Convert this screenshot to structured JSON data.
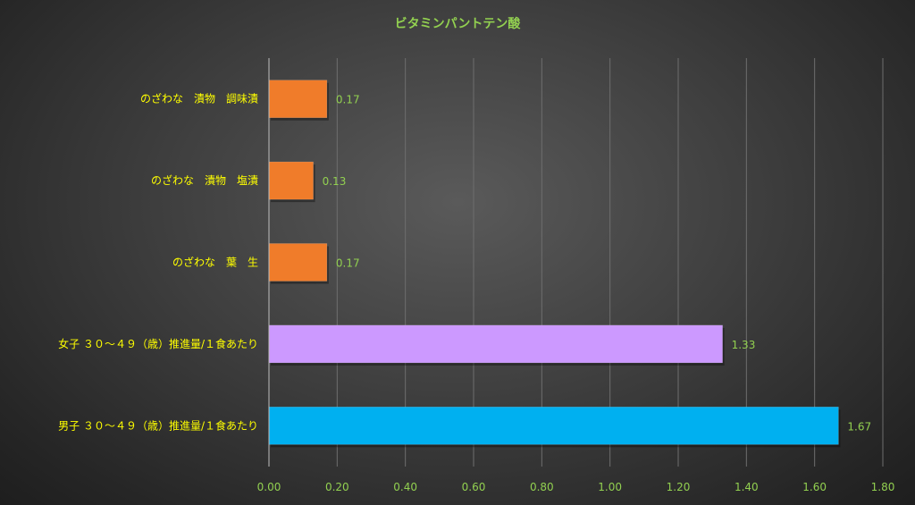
{
  "chart_data": {
    "type": "bar",
    "orientation": "horizontal",
    "title": "ビタミンパントテン酸",
    "categories": [
      "のざわな　漬物　調味漬",
      "のざわな　漬物　塩漬",
      "のざわな　葉　生",
      "女子 ３０～４９（歳）推進量/１食あたり",
      "男子 ３０～４９（歳）推進量/１食あたり"
    ],
    "values": [
      0.17,
      0.13,
      0.17,
      1.33,
      1.67
    ],
    "data_labels": [
      "0.17",
      "0.13",
      "0.17",
      "1.33",
      "1.67"
    ],
    "bar_colors": [
      "#f07c2a",
      "#f07c2a",
      "#f07c2a",
      "#cc99ff",
      "#00b0f0"
    ],
    "xlim": [
      0,
      1.8
    ],
    "x_ticks": [
      "0.00",
      "0.20",
      "0.40",
      "0.60",
      "0.80",
      "1.00",
      "1.20",
      "1.40",
      "1.60",
      "1.80"
    ],
    "grid": "vertical",
    "legend": "none",
    "xlabel": "",
    "ylabel": ""
  },
  "colors": {
    "title": "#92d050",
    "category_label": "#ffff00",
    "tick_label": "#92d050",
    "data_label": "#92d050",
    "gridline": "#6e6e6e",
    "axis_line": "#bfbfbf"
  }
}
